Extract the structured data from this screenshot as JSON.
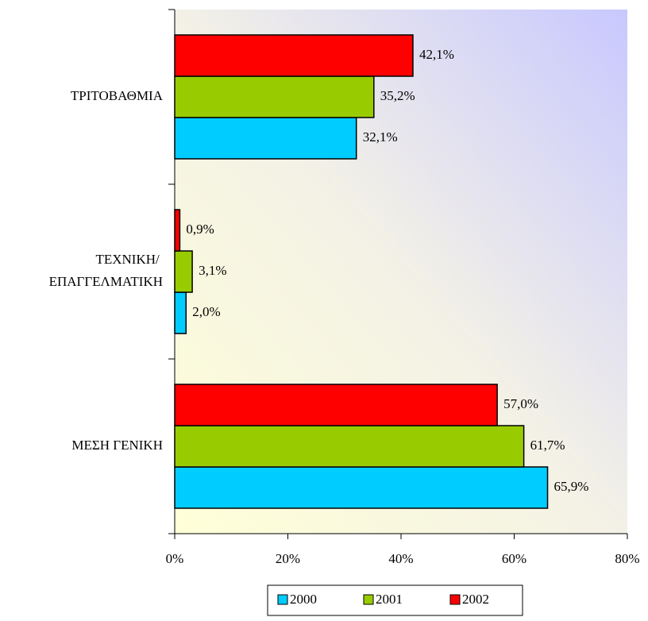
{
  "chart_data": {
    "type": "bar",
    "orientation": "horizontal",
    "categories": [
      "ΤΡΙΤΟΒΑΘΜΙΑ",
      "ΤΕΧΝΙΚΗ/ ΕΠΑΓΓΕΛΜΑΤΙΚΗ",
      "ΜΕΣΗ ΓΕΝΙΚΗ"
    ],
    "series": [
      {
        "name": "2000",
        "color": "#00ccff",
        "values": [
          32.1,
          2.0,
          65.9
        ],
        "value_labels": [
          "32,1%",
          "2,0%",
          "65,9%"
        ]
      },
      {
        "name": "2001",
        "color": "#99cc00",
        "values": [
          35.2,
          3.1,
          61.7
        ],
        "value_labels": [
          "35,2%",
          "3,1%",
          "61,7%"
        ]
      },
      {
        "name": "2002",
        "color": "#ff0000",
        "values": [
          42.1,
          0.9,
          57.0
        ],
        "value_labels": [
          "42,1%",
          "0,9%",
          "57,0%"
        ]
      }
    ],
    "xlim": [
      0,
      80
    ],
    "xticks": [
      {
        "value": 0,
        "label": "0%"
      },
      {
        "value": 20,
        "label": "20%"
      },
      {
        "value": 40,
        "label": "40%"
      },
      {
        "value": 60,
        "label": "60%"
      },
      {
        "value": 80,
        "label": "80%"
      }
    ],
    "legend": "bottom",
    "grid": false
  }
}
